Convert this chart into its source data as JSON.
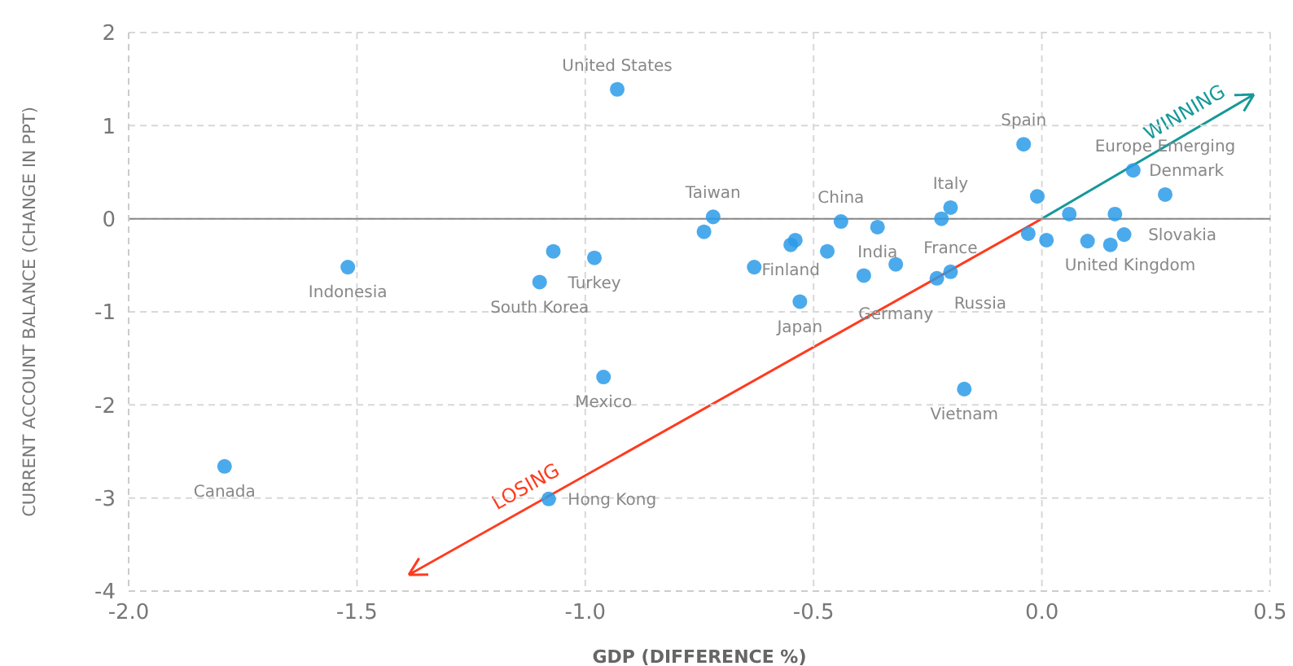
{
  "chart_data": {
    "type": "scatter",
    "xlabel": "GDP (DIFFERENCE %)",
    "ylabel": "CURRENT ACCOUNT BALANCE (CHANGE IN PPT)",
    "x": [
      -0.93,
      -1.52,
      -1.07,
      -1.1,
      -0.98,
      -0.96,
      -1.79,
      -1.08,
      -0.17,
      -0.72,
      -0.74,
      -0.63,
      -0.54,
      -0.55,
      -0.47,
      -0.44,
      -0.39,
      -0.36,
      -0.32,
      -0.53,
      -0.2,
      -0.22,
      -0.2,
      -0.23,
      -0.04,
      -0.01,
      -0.03,
      0.01,
      0.06,
      0.1,
      0.16,
      0.15,
      0.18,
      0.2,
      0.27
    ],
    "series": [
      {
        "color": "#2b9be8",
        "values": [
          1.39,
          -0.52,
          -0.35,
          -0.68,
          -0.42,
          -1.7,
          -2.66,
          -3.01,
          -1.83,
          0.02,
          -0.14,
          -0.52,
          -0.23,
          -0.28,
          -0.35,
          -0.03,
          -0.61,
          -0.09,
          -0.49,
          -0.89,
          0.12,
          0.0,
          -0.57,
          -0.64,
          0.8,
          0.24,
          -0.16,
          -0.23,
          0.05,
          -0.24,
          0.05,
          -0.28,
          -0.17,
          0.52,
          0.26
        ]
      }
    ],
    "xlim": [
      -2,
      0.5
    ],
    "xticks": [
      {
        "value": -2,
        "label": "-2.0"
      },
      {
        "value": -1.5,
        "label": "-1.5"
      },
      {
        "value": -1,
        "label": "-1.0"
      },
      {
        "value": -0.5,
        "label": "-0.5"
      },
      {
        "value": 0,
        "label": "0.0"
      },
      {
        "value": 0.5,
        "label": "0.5"
      }
    ],
    "ylim": [
      -4,
      2
    ],
    "yticks": [
      -4,
      -3,
      -2,
      -1,
      0,
      1,
      2
    ],
    "grid": true,
    "marker": "circle",
    "ref_lines": [
      {
        "axis": "y",
        "value": 0,
        "color": "#888888"
      }
    ],
    "annotations": [
      "WINNING",
      "LOSING",
      {
        "text": "United States",
        "x": -0.93,
        "y": 1.39
      },
      {
        "text": "Indonesia",
        "x": -1.52,
        "y": -0.52
      },
      {
        "text": "Turkey",
        "x": -0.98,
        "y": -0.42
      },
      {
        "text": "South Korea",
        "x": -1.1,
        "y": -0.68
      },
      {
        "text": "Mexico",
        "x": -0.96,
        "y": -1.7
      },
      {
        "text": "Canada",
        "x": -1.79,
        "y": -2.66
      },
      {
        "text": "Hong Kong",
        "x": -1.08,
        "y": -3.01
      },
      {
        "text": "Taiwan",
        "x": -0.72,
        "y": 0.02
      },
      {
        "text": "China",
        "x": -0.44,
        "y": -0.03
      },
      {
        "text": "India",
        "x": -0.36,
        "y": -0.09
      },
      {
        "text": "Italy",
        "x": -0.2,
        "y": 0.12
      },
      {
        "text": "Spain",
        "x": -0.04,
        "y": 0.8
      },
      {
        "text": "Denmark",
        "x": 0.2,
        "y": 0.52
      },
      {
        "text": "Europe Emerging",
        "x": 0.27,
        "y": 0.26
      },
      {
        "text": "Germany",
        "x": -0.32,
        "y": -0.49
      },
      {
        "text": "Finland",
        "x": -0.55,
        "y": -0.28
      },
      {
        "text": "Japan",
        "x": -0.53,
        "y": -0.89
      },
      {
        "text": "Russia",
        "x": -0.23,
        "y": -0.64
      },
      {
        "text": "France",
        "x": -0.2,
        "y": -0.57
      },
      {
        "text": "United Kingdom",
        "x": 0.01,
        "y": -0.23
      },
      {
        "text": "Slovakia",
        "x": 0.18,
        "y": -0.17
      },
      {
        "text": "Vietnam",
        "x": -0.17,
        "y": -1.83
      }
    ]
  }
}
